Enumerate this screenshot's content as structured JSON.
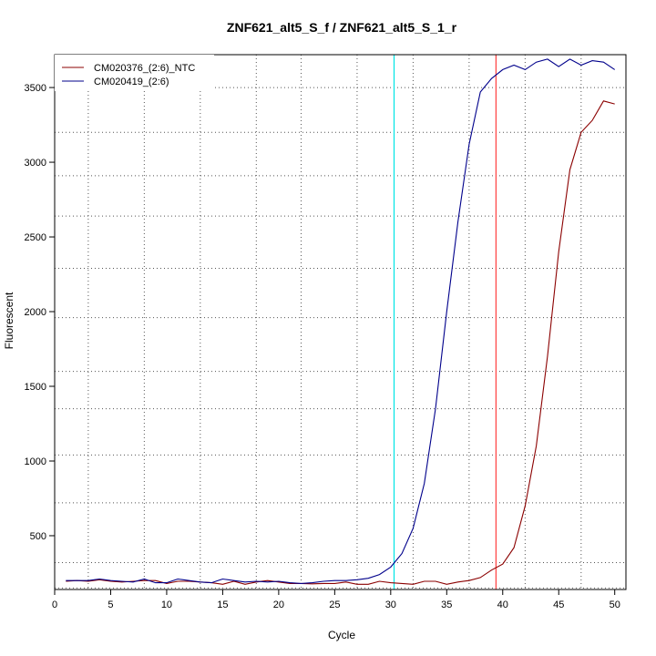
{
  "chart_data": {
    "type": "line",
    "title": "ZNF621_alt5_S_f / ZNF621_alt5_S_1_r",
    "xlabel": "Cycle",
    "ylabel": "Fluorescent",
    "xlim": [
      0,
      51
    ],
    "ylim": [
      140,
      3720
    ],
    "x_ticks": [
      0,
      5,
      10,
      15,
      20,
      25,
      30,
      35,
      40,
      45,
      50
    ],
    "y_ticks": [
      500,
      1000,
      1500,
      2000,
      2500,
      3000,
      3500
    ],
    "x_minor_grid": [
      3,
      8,
      13,
      18,
      22,
      27,
      32,
      37,
      42,
      47
    ],
    "y_minor_grid": [
      150,
      320,
      720,
      1040,
      1350,
      1600,
      1960,
      2290,
      2640,
      2910,
      3200,
      3500
    ],
    "grid": true,
    "legend_position": "top-left",
    "x": [
      1,
      2,
      3,
      4,
      5,
      6,
      7,
      8,
      9,
      10,
      11,
      12,
      13,
      14,
      15,
      16,
      17,
      18,
      19,
      20,
      21,
      22,
      23,
      24,
      25,
      26,
      27,
      28,
      29,
      30,
      31,
      32,
      33,
      34,
      35,
      36,
      37,
      38,
      39,
      40,
      41,
      42,
      43,
      44,
      45,
      46,
      47,
      48,
      49,
      50
    ],
    "series": [
      {
        "name": "CM020376_(2:6)_NTC",
        "color": "#8b0000",
        "values": [
          195,
          200,
          195,
          205,
          195,
          190,
          195,
          200,
          200,
          180,
          195,
          195,
          190,
          185,
          175,
          195,
          175,
          190,
          200,
          190,
          180,
          180,
          178,
          180,
          180,
          190,
          175,
          175,
          195,
          185,
          180,
          175,
          195,
          195,
          175,
          190,
          200,
          220,
          270,
          310,
          420,
          700,
          1100,
          1700,
          2400,
          2950,
          3200,
          3280,
          3410,
          3390
        ]
      },
      {
        "name": "CM020419_(2:6)",
        "color": "#00008b",
        "values": [
          200,
          200,
          200,
          210,
          200,
          195,
          190,
          210,
          185,
          185,
          210,
          200,
          190,
          185,
          210,
          200,
          190,
          195,
          190,
          195,
          185,
          180,
          185,
          195,
          200,
          200,
          205,
          215,
          240,
          290,
          380,
          550,
          850,
          1350,
          2000,
          2600,
          3120,
          3470,
          3560,
          3620,
          3650,
          3620,
          3670,
          3690,
          3640,
          3690,
          3650,
          3680,
          3670,
          3620
        ]
      }
    ],
    "vlines": [
      {
        "x": 30.3,
        "color": "#00e5e5"
      },
      {
        "x": 39.4,
        "color": "#ff4040"
      }
    ]
  }
}
